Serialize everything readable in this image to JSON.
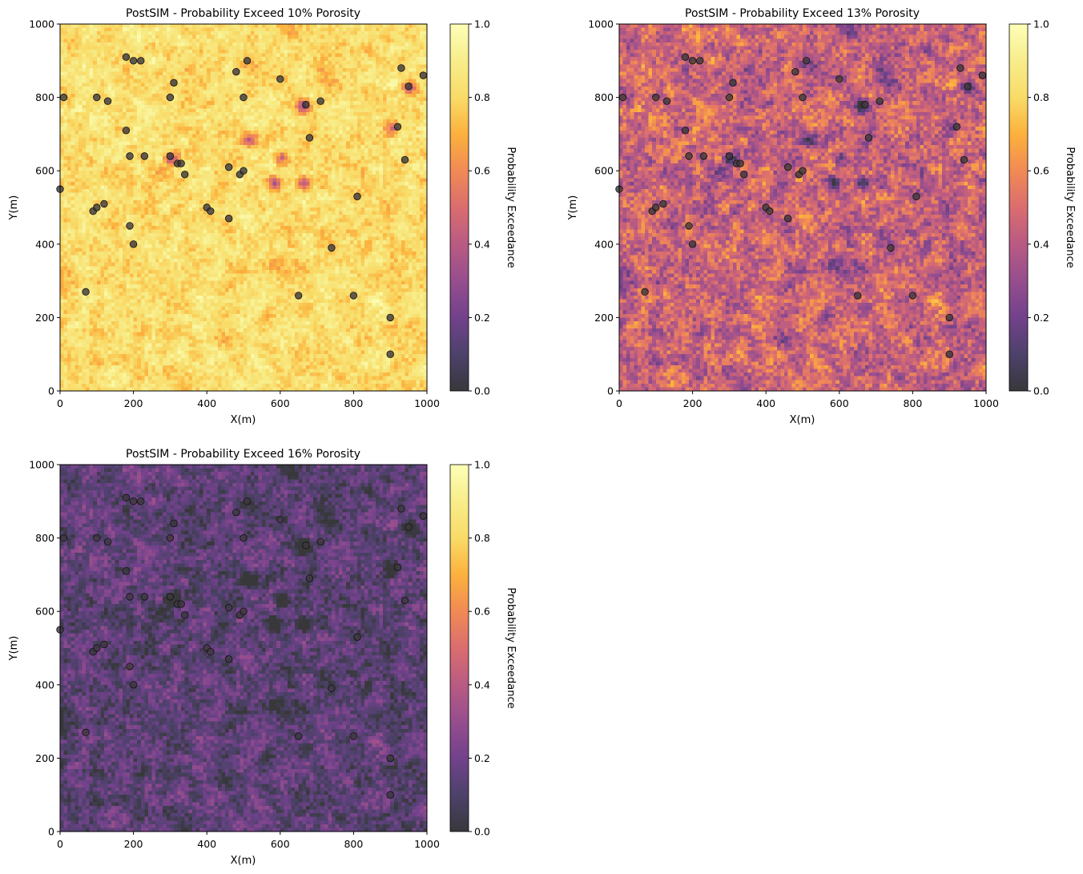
{
  "chart_data": [
    {
      "type": "heatmap",
      "title": "PostSIM - Probability Exceed 10% Porosity",
      "xlabel": "X(m)",
      "ylabel": "Y(m)",
      "xlim": [
        0,
        1000
      ],
      "ylim": [
        0,
        1000
      ],
      "xticks": [
        "0",
        "200",
        "400",
        "600",
        "800",
        "1000"
      ],
      "yticks": [
        "0",
        "200",
        "400",
        "600",
        "800",
        "1000"
      ],
      "grid_cells": [
        100,
        100
      ],
      "value_mean": 0.82,
      "value_spread": 0.17,
      "colormap": "inferno",
      "colorbar": {
        "label": "Probability Exceedance",
        "range": [
          0,
          1
        ],
        "ticks": [
          "0.0",
          "0.2",
          "0.4",
          "0.6",
          "0.8",
          "1.0"
        ]
      }
    },
    {
      "type": "heatmap",
      "title": "PostSIM - Probability Exceed 13% Porosity",
      "xlabel": "X(m)",
      "ylabel": "Y(m)",
      "xlim": [
        0,
        1000
      ],
      "ylim": [
        0,
        1000
      ],
      "xticks": [
        "0",
        "200",
        "400",
        "600",
        "800",
        "1000"
      ],
      "yticks": [
        "0",
        "200",
        "400",
        "600",
        "800",
        "1000"
      ],
      "grid_cells": [
        100,
        100
      ],
      "value_mean": 0.45,
      "value_spread": 0.3,
      "colormap": "inferno",
      "colorbar": {
        "label": "Probability Exceedance",
        "range": [
          0,
          1
        ],
        "ticks": [
          "0.0",
          "0.2",
          "0.4",
          "0.6",
          "0.8",
          "1.0"
        ]
      }
    },
    {
      "type": "heatmap",
      "title": "PostSIM - Probability Exceed 16% Porosity",
      "xlabel": "X(m)",
      "ylabel": "Y(m)",
      "xlim": [
        0,
        1000
      ],
      "ylim": [
        0,
        1000
      ],
      "xticks": [
        "0",
        "200",
        "400",
        "600",
        "800",
        "1000"
      ],
      "yticks": [
        "0",
        "200",
        "400",
        "600",
        "800",
        "1000"
      ],
      "grid_cells": [
        100,
        100
      ],
      "value_mean": 0.14,
      "value_spread": 0.2,
      "colormap": "inferno",
      "colorbar": {
        "label": "Probability Exceedance",
        "range": [
          0,
          1
        ],
        "ticks": [
          "0.0",
          "0.2",
          "0.4",
          "0.6",
          "0.8",
          "1.0"
        ]
      }
    }
  ],
  "wells": [
    [
      0,
      550
    ],
    [
      10,
      800
    ],
    [
      70,
      270
    ],
    [
      90,
      490
    ],
    [
      100,
      500
    ],
    [
      100,
      800
    ],
    [
      120,
      510
    ],
    [
      130,
      790
    ],
    [
      180,
      710
    ],
    [
      180,
      910
    ],
    [
      190,
      640
    ],
    [
      190,
      450
    ],
    [
      200,
      900
    ],
    [
      200,
      400
    ],
    [
      220,
      900
    ],
    [
      230,
      640
    ],
    [
      300,
      640
    ],
    [
      300,
      800
    ],
    [
      310,
      840
    ],
    [
      320,
      620
    ],
    [
      330,
      620
    ],
    [
      340,
      590
    ],
    [
      400,
      500
    ],
    [
      410,
      490
    ],
    [
      460,
      470
    ],
    [
      460,
      610
    ],
    [
      480,
      870
    ],
    [
      490,
      590
    ],
    [
      500,
      800
    ],
    [
      500,
      600
    ],
    [
      510,
      900
    ],
    [
      600,
      850
    ],
    [
      650,
      260
    ],
    [
      670,
      780
    ],
    [
      680,
      690
    ],
    [
      710,
      790
    ],
    [
      740,
      390
    ],
    [
      800,
      260
    ],
    [
      810,
      530
    ],
    [
      900,
      200
    ],
    [
      900,
      100
    ],
    [
      920,
      720
    ],
    [
      930,
      880
    ],
    [
      940,
      630
    ],
    [
      950,
      830
    ],
    [
      990,
      860
    ]
  ],
  "dark_spots": [
    [
      600,
      640
    ],
    [
      660,
      570
    ],
    [
      580,
      570
    ],
    [
      510,
      690
    ],
    [
      900,
      720
    ],
    [
      660,
      780
    ],
    [
      950,
      830
    ],
    [
      300,
      640
    ]
  ]
}
